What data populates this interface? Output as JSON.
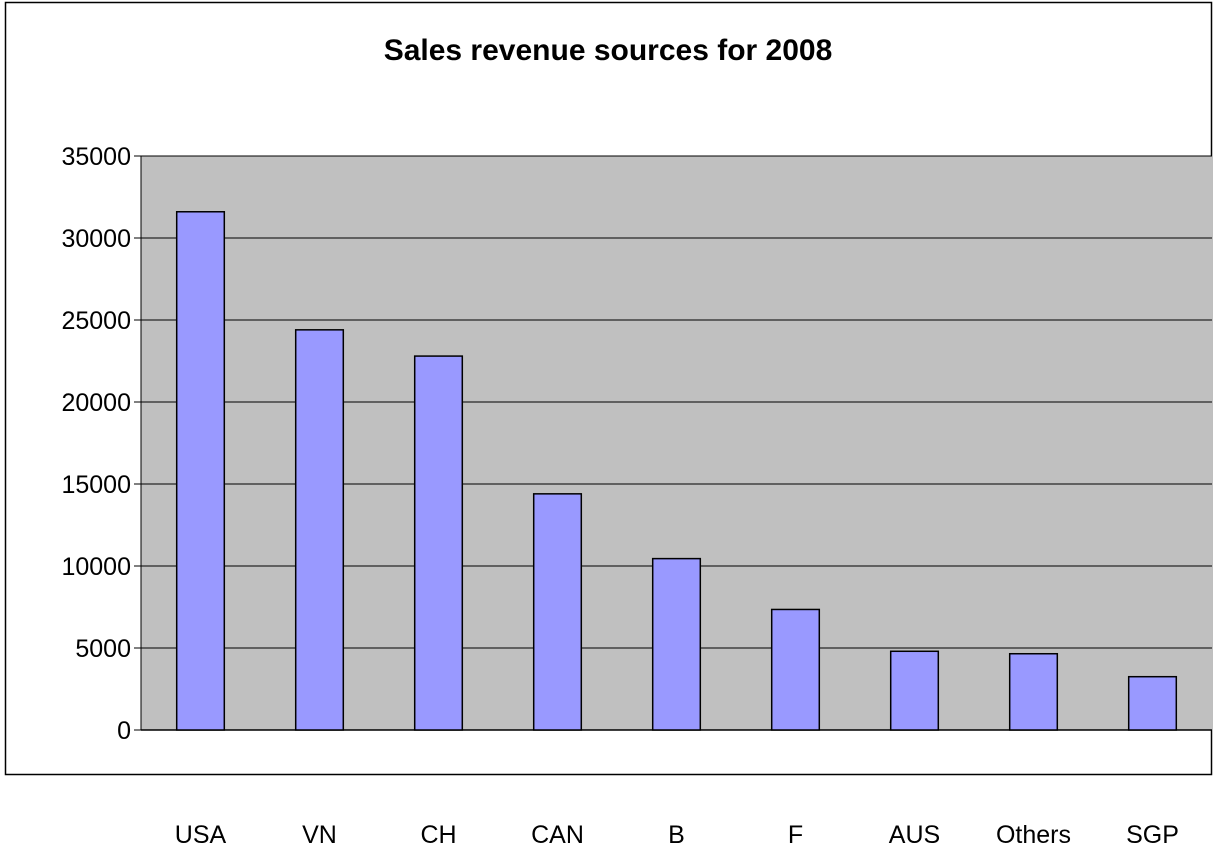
{
  "chart_data": {
    "type": "bar",
    "title": "Sales revenue sources for 2008",
    "xlabel": "",
    "ylabel": "",
    "categories": [
      "USA",
      "VN",
      "CH",
      "CAN",
      "B",
      "F",
      "AUS",
      "Others",
      "SGP"
    ],
    "values": [
      31600,
      24400,
      22800,
      14400,
      10450,
      7350,
      4800,
      4650,
      3250
    ],
    "ylim": [
      0,
      35000
    ],
    "yticks": [
      0,
      5000,
      10000,
      15000,
      20000,
      25000,
      30000,
      35000
    ],
    "grid": true,
    "legend": "none",
    "colors": {
      "bar_fill": "#9999ff",
      "bar_stroke": "#000000",
      "plot_background": "#c0c0c0",
      "grid": "#000000",
      "chart_background": "#ffffff"
    }
  }
}
